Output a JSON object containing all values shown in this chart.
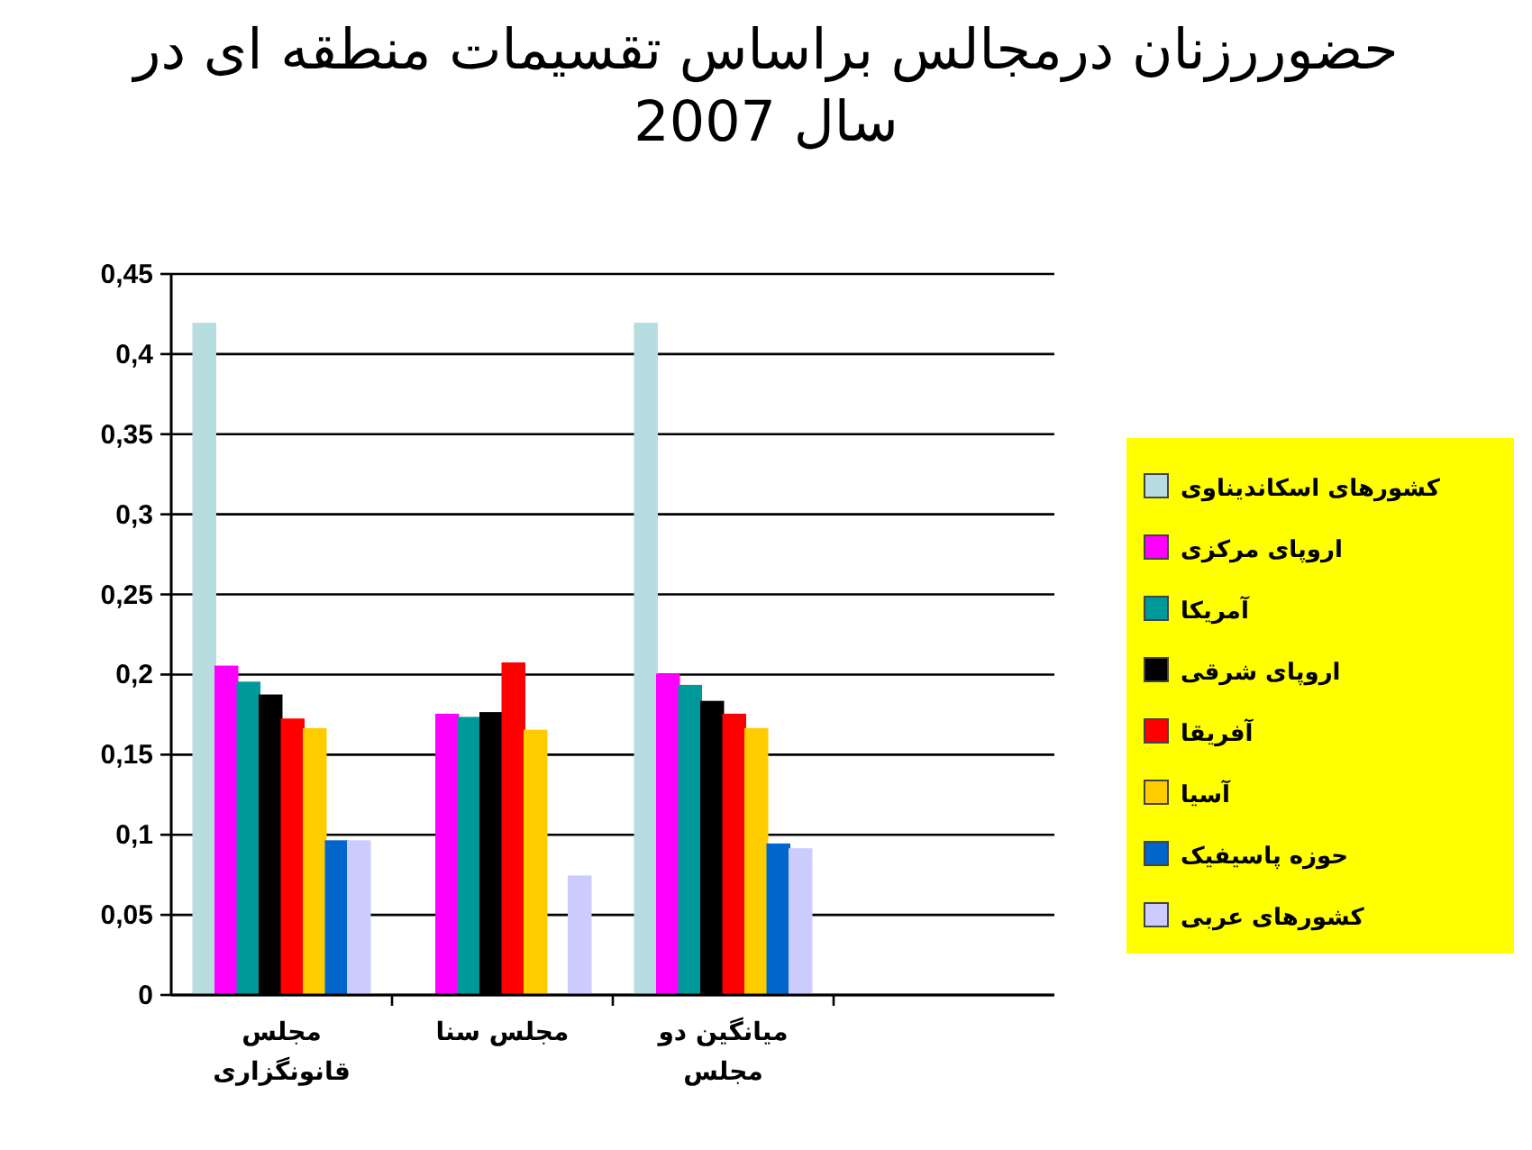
{
  "chart_data": {
    "type": "bar",
    "title": "حضوررزنان درمجالس براساس تقسیمات منطقه ای در سال 2007",
    "categories": [
      "مجلس قانونگزاری",
      "مجلس سنا",
      "میانگین دو مجلس",
      null
    ],
    "series": [
      {
        "name": "کشورهای اسکاندیناوی",
        "color": "#b7dde0",
        "values": [
          0.419,
          0,
          0.419,
          0
        ]
      },
      {
        "name": "اروپای مرکزی",
        "color": "#ff00ff",
        "values": [
          0.205,
          0.175,
          0.2,
          0
        ]
      },
      {
        "name": "آمریکا",
        "color": "#009999",
        "values": [
          0.195,
          0.173,
          0.193,
          0
        ]
      },
      {
        "name": "اروپای شرقی",
        "color": "#000000",
        "values": [
          0.187,
          0.176,
          0.183,
          0
        ]
      },
      {
        "name": "آفریقا",
        "color": "#ff0000",
        "values": [
          0.172,
          0.207,
          0.175,
          0
        ]
      },
      {
        "name": "آسیا",
        "color": "#ffcc00",
        "values": [
          0.166,
          0.165,
          0.166,
          0
        ]
      },
      {
        "name": "حوزه پاسیفیک",
        "color": "#0066cc",
        "values": [
          0.096,
          0,
          0.094,
          0
        ]
      },
      {
        "name": "کشورهای عربی",
        "color": "#ccccff",
        "values": [
          0.096,
          0.074,
          0.091,
          0
        ]
      }
    ],
    "ylim": [
      0,
      0.45
    ],
    "yticks": [
      {
        "value": 0,
        "label": "0"
      },
      {
        "value": 0.05,
        "label": "0,05"
      },
      {
        "value": 0.1,
        "label": "0,1"
      },
      {
        "value": 0.15,
        "label": "0,15"
      },
      {
        "value": 0.2,
        "label": "0,2"
      },
      {
        "value": 0.25,
        "label": "0,25"
      },
      {
        "value": 0.3,
        "label": "0,3"
      },
      {
        "value": 0.35,
        "label": "0,35"
      },
      {
        "value": 0.4,
        "label": "0,4"
      },
      {
        "value": 0.45,
        "label": "0,45"
      }
    ],
    "grid": "y",
    "legend": "right"
  }
}
